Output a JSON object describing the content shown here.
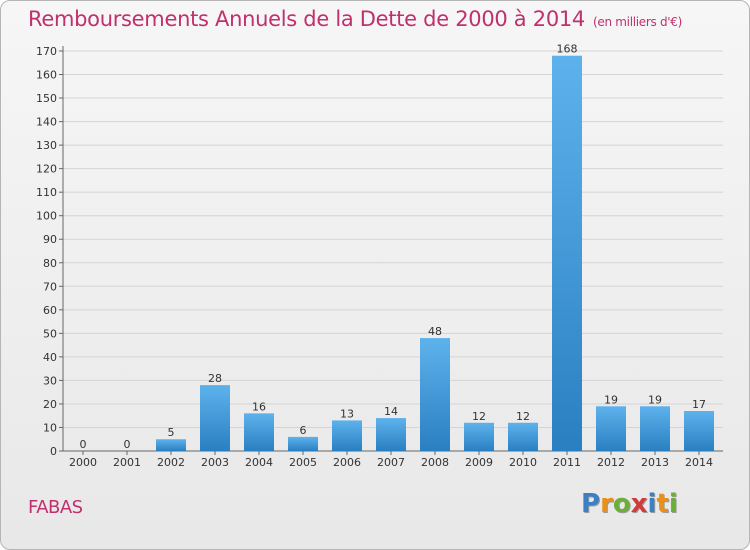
{
  "title": "Remboursements Annuels de la Dette de 2000 à 2014",
  "unit": "(en milliers d'€)",
  "commune": "FABAS",
  "logo": {
    "text": "Proxiti",
    "colors": [
      "#3b7fc4",
      "#e8901c",
      "#6cae3a",
      "#d23b3b",
      "#3b7fc4",
      "#e8901c",
      "#6cae3a"
    ]
  },
  "colors": {
    "bar_light": "#5eb2ec",
    "bar_dark": "#2a7fc1",
    "title": "#c0306e",
    "grid": "#d4d4d4"
  },
  "chart_data": {
    "type": "bar",
    "title": "Remboursements Annuels de la Dette de 2000 à 2014",
    "ylabel": "(en milliers d'€)",
    "categories": [
      "2000",
      "2001",
      "2002",
      "2003",
      "2004",
      "2005",
      "2006",
      "2007",
      "2008",
      "2009",
      "2010",
      "2011",
      "2012",
      "2013",
      "2014"
    ],
    "values": [
      0,
      0,
      5,
      28,
      16,
      6,
      13,
      14,
      48,
      12,
      12,
      168,
      19,
      19,
      17
    ],
    "ylim": [
      0,
      170
    ],
    "yticks": [
      0,
      10,
      20,
      30,
      40,
      50,
      60,
      70,
      80,
      90,
      100,
      110,
      120,
      130,
      140,
      150,
      160,
      170
    ],
    "grid": true
  }
}
